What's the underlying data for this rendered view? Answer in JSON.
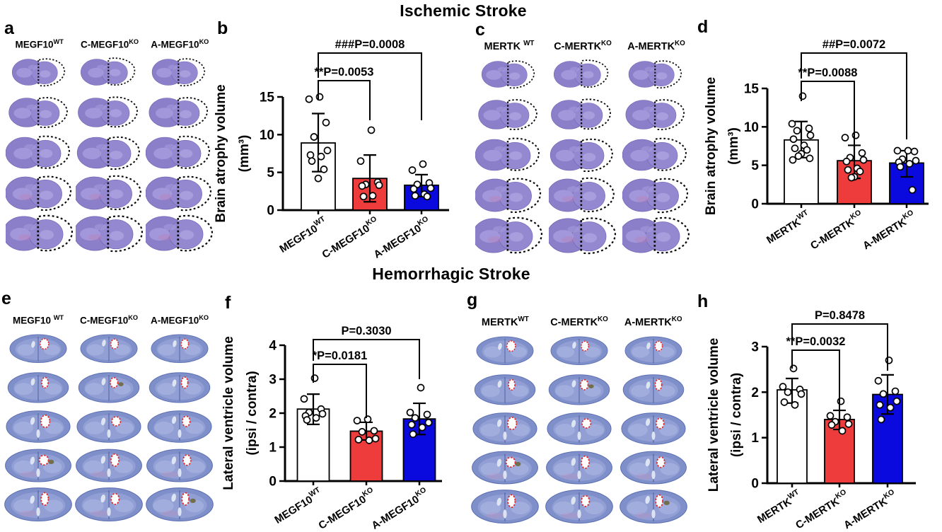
{
  "titles": {
    "ischemic": "Ischemic Stroke",
    "hemorrhagic": "Hemorrhagic Stroke"
  },
  "panel_letters": {
    "a": "a",
    "b": "b",
    "c": "c",
    "d": "d",
    "e": "e",
    "f": "f",
    "g": "g",
    "h": "h"
  },
  "colors": {
    "wt_bar": "#ffffff",
    "conditional_ko_bar": "#ee3b3b",
    "acute_ko_bar": "#0a0ade",
    "ischemic_stain": "#8b7fca",
    "hemorrhagic_stain": "#7e8fca",
    "ventricle_outline": "#e22b2b"
  },
  "brain_panels": [
    {
      "id": "a",
      "letter": "a",
      "stain": "ischemic",
      "rows": 5,
      "columns": [
        {
          "text": "MEGF10",
          "sup": "WT"
        },
        {
          "text": "C-MEGF10",
          "sup": "KO"
        },
        {
          "text": "A-MEGF10",
          "sup": "KO"
        }
      ]
    },
    {
      "id": "c",
      "letter": "c",
      "stain": "ischemic",
      "rows": 5,
      "columns": [
        {
          "text": "MERTK ",
          "sup": "WT"
        },
        {
          "text": "C-MERTK",
          "sup": "KO"
        },
        {
          "text": "A-MERTK",
          "sup": "KO"
        }
      ]
    },
    {
      "id": "e",
      "letter": "e",
      "stain": "hemorrhagic",
      "rows": 5,
      "columns": [
        {
          "text": "MEGF10 ",
          "sup": "WT"
        },
        {
          "text": "C-MEGF10",
          "sup": "KO"
        },
        {
          "text": "A-MEGF10",
          "sup": "KO"
        }
      ]
    },
    {
      "id": "g",
      "letter": "g",
      "stain": "hemorrhagic",
      "rows": 5,
      "columns": [
        {
          "text": "MERTK",
          "sup": "WT"
        },
        {
          "text": "C-MERTK",
          "sup": "KO"
        },
        {
          "text": "A-MERTK",
          "sup": "KO"
        }
      ]
    }
  ],
  "chart_data": [
    {
      "id": "b",
      "type": "bar",
      "panel_letter": "b",
      "ylabel_lines": [
        "Brain atrophy volume",
        "(mm³)"
      ],
      "ylim": [
        0,
        15
      ],
      "yticks": [
        0,
        5,
        10,
        15
      ],
      "grid": false,
      "categories": [
        {
          "text": "MEGF10",
          "sup": "WT"
        },
        {
          "text": "C-MEGF10",
          "sup": "KO"
        },
        {
          "text": "A-MEGF10",
          "sup": "KO"
        }
      ],
      "bar_colors": [
        "#ffffff",
        "#ee3b3b",
        "#0a0ade"
      ],
      "series": [
        {
          "mean": 8.9,
          "err_low": 5.1,
          "err_high": 12.8,
          "points": [
            15.0,
            14.7,
            11.6,
            9.7,
            7.9,
            7.3,
            7.1,
            6.5,
            5.4,
            4.2
          ]
        },
        {
          "mean": 4.2,
          "err_low": 1.1,
          "err_high": 7.3,
          "points": [
            10.6,
            6.5,
            3.7,
            3.4,
            3.3,
            3.2,
            1.9,
            1.8
          ]
        },
        {
          "mean": 3.3,
          "err_low": 1.8,
          "err_high": 4.7,
          "points": [
            6.1,
            5.3,
            3.6,
            3.4,
            2.9,
            2.8,
            2.1,
            1.9,
            1.8
          ]
        }
      ],
      "significance": [
        {
          "from": 0,
          "to": 1,
          "label": "**P=0.0053"
        },
        {
          "from": 0,
          "to": 2,
          "label": "###P=0.0008"
        }
      ]
    },
    {
      "id": "d",
      "type": "bar",
      "panel_letter": "d",
      "ylabel_lines": [
        "Brain atrophy volume",
        "(mm³)"
      ],
      "ylim": [
        0,
        15
      ],
      "yticks": [
        0,
        5,
        10,
        15
      ],
      "grid": false,
      "categories": [
        {
          "text": "MERTK",
          "sup": "WT"
        },
        {
          "text": "C-MERTK",
          "sup": "KO"
        },
        {
          "text": "A-MERTK",
          "sup": "KO"
        }
      ],
      "bar_colors": [
        "#ffffff",
        "#ee3b3b",
        "#0a0ade"
      ],
      "series": [
        {
          "mean": 8.3,
          "err_low": 6.0,
          "err_high": 10.7,
          "points": [
            14.0,
            10.4,
            9.8,
            9.5,
            8.9,
            8.4,
            7.6,
            7.2,
            7.0,
            6.5,
            6.2,
            5.9,
            5.7
          ]
        },
        {
          "mean": 5.6,
          "err_low": 3.3,
          "err_high": 7.6,
          "points": [
            8.9,
            8.6,
            6.6,
            6.0,
            5.7,
            5.5,
            4.6,
            4.4,
            4.2,
            3.5,
            3.4
          ]
        },
        {
          "mean": 5.3,
          "err_low": 3.5,
          "err_high": 6.9,
          "points": [
            6.9,
            6.9,
            6.8,
            5.8,
            5.6,
            5.4,
            5.2,
            4.8,
            1.8
          ]
        }
      ],
      "significance": [
        {
          "from": 0,
          "to": 1,
          "label": "**P=0.0088"
        },
        {
          "from": 0,
          "to": 2,
          "label": "##P=0.0072"
        }
      ]
    },
    {
      "id": "f",
      "type": "bar",
      "panel_letter": "f",
      "ylabel_lines": [
        "Lateral ventricle volume",
        "(ipsi / contra)"
      ],
      "ylim": [
        0,
        4
      ],
      "yticks": [
        0,
        1,
        2,
        3,
        4
      ],
      "grid": false,
      "categories": [
        {
          "text": "MEGF10",
          "sup": "WT"
        },
        {
          "text": "C-MEGF10",
          "sup": "KO"
        },
        {
          "text": "A-MEGF10",
          "sup": "KO"
        }
      ],
      "bar_colors": [
        "#ffffff",
        "#ee3b3b",
        "#0a0ade"
      ],
      "series": [
        {
          "mean": 2.12,
          "err_low": 1.67,
          "err_high": 2.56,
          "points": [
            3.03,
            2.42,
            2.12,
            2.02,
            1.98,
            1.92,
            1.86,
            1.8
          ]
        },
        {
          "mean": 1.47,
          "err_low": 1.21,
          "err_high": 1.73,
          "points": [
            1.82,
            1.78,
            1.48,
            1.45,
            1.25,
            1.22,
            1.2
          ]
        },
        {
          "mean": 1.83,
          "err_low": 1.37,
          "err_high": 2.29,
          "points": [
            2.75,
            2.02,
            1.96,
            1.86,
            1.72,
            1.66,
            1.58,
            1.38
          ]
        }
      ],
      "significance": [
        {
          "from": 0,
          "to": 1,
          "label": "*P=0.0181"
        },
        {
          "from": 0,
          "to": 2,
          "label": "P=0.3030"
        }
      ]
    },
    {
      "id": "h",
      "type": "bar",
      "panel_letter": "h",
      "ylabel_lines": [
        "Lateral ventricle volume",
        "(ipsi / contra)"
      ],
      "ylim": [
        0,
        3
      ],
      "yticks": [
        0,
        1,
        2,
        3
      ],
      "grid": false,
      "categories": [
        {
          "text": "MERTK",
          "sup": "WT"
        },
        {
          "text": "C-MERTK",
          "sup": "KO"
        },
        {
          "text": "A-MERTK",
          "sup": "KO"
        }
      ],
      "bar_colors": [
        "#ffffff",
        "#ee3b3b",
        "#0a0ade"
      ],
      "series": [
        {
          "mean": 2.05,
          "err_low": 1.76,
          "err_high": 2.3,
          "points": [
            2.52,
            2.12,
            2.06,
            2.0,
            1.96,
            1.78,
            1.72
          ]
        },
        {
          "mean": 1.4,
          "err_low": 1.18,
          "err_high": 1.6,
          "points": [
            1.8,
            1.48,
            1.45,
            1.35,
            1.3,
            1.28,
            1.15
          ]
        },
        {
          "mean": 1.95,
          "err_low": 1.52,
          "err_high": 2.38,
          "points": [
            2.7,
            2.25,
            2.02,
            1.96,
            1.8,
            1.72,
            1.66,
            1.4
          ]
        }
      ],
      "significance": [
        {
          "from": 0,
          "to": 1,
          "label": "**P=0.0032"
        },
        {
          "from": 0,
          "to": 2,
          "label": "P=0.8478"
        }
      ]
    }
  ]
}
